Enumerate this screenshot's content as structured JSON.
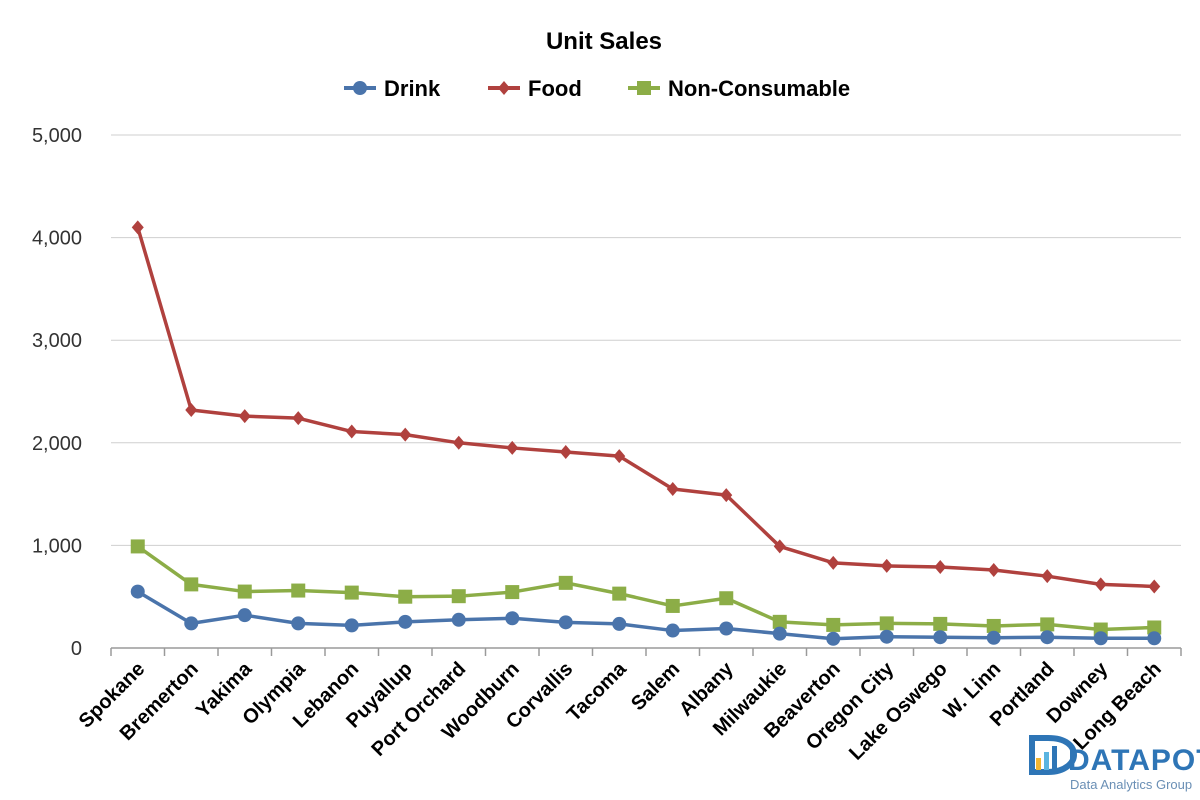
{
  "chart_data": {
    "type": "line",
    "title": "Unit Sales",
    "categories": [
      "Spokane",
      "Bremerton",
      "Yakima",
      "Olympia",
      "Lebanon",
      "Puyallup",
      "Port Orchard",
      "Woodburn",
      "Corvallis",
      "Tacoma",
      "Salem",
      "Albany",
      "Milwaukie",
      "Beaverton",
      "Oregon City",
      "Lake Oswego",
      "W. Linn",
      "Portland",
      "Downey",
      "Long Beach"
    ],
    "series": [
      {
        "name": "Drink",
        "color": "#4a74ab",
        "marker": "circle",
        "values": [
          550,
          240,
          320,
          240,
          220,
          255,
          275,
          290,
          250,
          235,
          170,
          190,
          140,
          90,
          110,
          105,
          100,
          105,
          95,
          95
        ]
      },
      {
        "name": "Food",
        "color": "#b0413e",
        "marker": "diamond",
        "values": [
          4100,
          2320,
          2260,
          2240,
          2110,
          2080,
          2000,
          1950,
          1910,
          1870,
          1550,
          1490,
          990,
          830,
          800,
          790,
          760,
          700,
          620,
          600
        ]
      },
      {
        "name": "Non-Consumable",
        "color": "#8cad47",
        "marker": "square",
        "values": [
          990,
          620,
          550,
          560,
          540,
          500,
          505,
          545,
          635,
          530,
          410,
          485,
          255,
          225,
          240,
          235,
          215,
          230,
          180,
          200
        ]
      }
    ],
    "yticks": [
      "0",
      "1,000",
      "2,000",
      "3,000",
      "4,000",
      "5,000"
    ],
    "ylim": [
      0,
      5000
    ],
    "grid": true,
    "legend_position": "top-center"
  },
  "watermark": {
    "brand": "DATAPOT",
    "tagline": "Data Analytics Group"
  }
}
